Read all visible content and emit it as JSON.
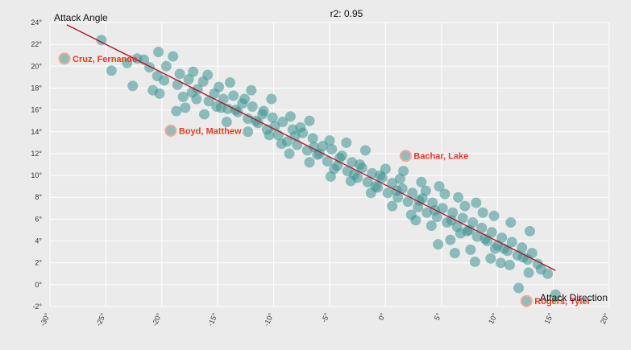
{
  "chart_data": {
    "type": "scatter",
    "title": "r2: 0.95",
    "xlabel": "Attack Direction",
    "ylabel": "Attack Angle",
    "xlim": [
      -30,
      20
    ],
    "ylim": [
      -2,
      24
    ],
    "x_ticks": [
      "-30°",
      "-25°",
      "-20°",
      "-15°",
      "-10°",
      "-5°",
      "0°",
      "5°",
      "10°",
      "15°",
      "20°"
    ],
    "y_ticks": [
      "-2°",
      "0°",
      "2°",
      "4°",
      "6°",
      "8°",
      "10°",
      "12°",
      "14°",
      "16°",
      "18°",
      "20°",
      "22°",
      "24°"
    ],
    "grid": true,
    "colors": {
      "points": "#3a9391",
      "trend": "#b2182b",
      "highlight_ring": "#f4a79a",
      "highlight_text": "#e8391d",
      "background": "#ebebeb"
    },
    "trendline": {
      "x": [
        -28.5,
        15.2
      ],
      "y": [
        23.8,
        1.3
      ]
    },
    "highlights": [
      {
        "name": "Cruz, Fernando",
        "x": -28.7,
        "y": 20.7
      },
      {
        "name": "Boyd, Matthew",
        "x": -19.2,
        "y": 14.1
      },
      {
        "name": "Bachar, Lake",
        "x": 1.8,
        "y": 11.8
      },
      {
        "name": "Rogers, Tyler",
        "x": 12.6,
        "y": -1.5
      }
    ],
    "points": [
      [
        -25.4,
        22.4
      ],
      [
        -24.5,
        19.6
      ],
      [
        -23.1,
        20.3
      ],
      [
        -22.2,
        20.7
      ],
      [
        -21.6,
        20.6
      ],
      [
        -21.1,
        19.9
      ],
      [
        -20.8,
        17.8
      ],
      [
        -20.3,
        21.3
      ],
      [
        -19.6,
        20.0
      ],
      [
        -19.0,
        20.9
      ],
      [
        -18.4,
        19.3
      ],
      [
        -18.1,
        17.2
      ],
      [
        -17.6,
        18.8
      ],
      [
        -17.2,
        19.5
      ],
      [
        -16.8,
        17.9
      ],
      [
        -16.3,
        18.6
      ],
      [
        -15.8,
        16.8
      ],
      [
        -15.3,
        17.5
      ],
      [
        -14.9,
        18.1
      ],
      [
        -14.5,
        17.0
      ],
      [
        -14.1,
        16.1
      ],
      [
        -13.6,
        17.3
      ],
      [
        -13.2,
        15.8
      ],
      [
        -12.8,
        16.6
      ],
      [
        -12.3,
        15.2
      ],
      [
        -11.9,
        16.3
      ],
      [
        -11.4,
        14.8
      ],
      [
        -11.0,
        15.6
      ],
      [
        -10.6,
        14.2
      ],
      [
        -10.1,
        15.3
      ],
      [
        -9.6,
        13.7
      ],
      [
        -9.2,
        14.9
      ],
      [
        -8.8,
        13.1
      ],
      [
        -8.3,
        14.2
      ],
      [
        -7.9,
        12.8
      ],
      [
        -7.4,
        13.9
      ],
      [
        -7.0,
        12.3
      ],
      [
        -6.5,
        13.4
      ],
      [
        -6.1,
        11.9
      ],
      [
        -5.6,
        12.7
      ],
      [
        -5.2,
        11.3
      ],
      [
        -4.8,
        12.4
      ],
      [
        -4.3,
        10.9
      ],
      [
        -3.9,
        11.8
      ],
      [
        -3.4,
        10.4
      ],
      [
        -3.0,
        11.2
      ],
      [
        -2.5,
        9.8
      ],
      [
        -2.1,
        10.7
      ],
      [
        -1.6,
        9.4
      ],
      [
        -1.2,
        10.2
      ],
      [
        -0.7,
        8.9
      ],
      [
        -0.3,
        9.8
      ],
      [
        0.2,
        8.4
      ],
      [
        0.6,
        9.3
      ],
      [
        1.1,
        8.0
      ],
      [
        1.5,
        8.8
      ],
      [
        2.0,
        7.6
      ],
      [
        2.4,
        8.4
      ],
      [
        2.9,
        7.1
      ],
      [
        3.3,
        7.9
      ],
      [
        3.7,
        6.6
      ],
      [
        4.2,
        7.5
      ],
      [
        4.6,
        6.2
      ],
      [
        5.1,
        7.0
      ],
      [
        5.5,
        5.7
      ],
      [
        6.0,
        6.6
      ],
      [
        6.4,
        5.3
      ],
      [
        6.9,
        6.1
      ],
      [
        7.3,
        4.9
      ],
      [
        7.8,
        5.7
      ],
      [
        8.2,
        4.4
      ],
      [
        8.6,
        5.2
      ],
      [
        9.1,
        4.0
      ],
      [
        9.5,
        4.8
      ],
      [
        10.0,
        3.6
      ],
      [
        10.4,
        4.3
      ],
      [
        10.9,
        3.1
      ],
      [
        11.3,
        3.9
      ],
      [
        11.8,
        2.7
      ],
      [
        12.2,
        3.4
      ],
      [
        12.7,
        2.3
      ],
      [
        13.1,
        2.9
      ],
      [
        13.6,
        1.9
      ],
      [
        14.5,
        1.0
      ],
      [
        15.2,
        -0.9
      ],
      [
        11.9,
        -0.3
      ],
      [
        -22.6,
        18.2
      ],
      [
        -20.2,
        17.5
      ],
      [
        -17.9,
        16.2
      ],
      [
        -15.9,
        19.2
      ],
      [
        -13.9,
        18.5
      ],
      [
        -12.0,
        17.8
      ],
      [
        -10.2,
        17.0
      ],
      [
        -8.5,
        15.4
      ],
      [
        -6.8,
        15.0
      ],
      [
        -5.0,
        13.2
      ],
      [
        -3.5,
        13.0
      ],
      [
        -1.8,
        12.3
      ],
      [
        0.0,
        10.6
      ],
      [
        1.6,
        10.4
      ],
      [
        3.2,
        9.4
      ],
      [
        4.8,
        9.0
      ],
      [
        6.5,
        8.0
      ],
      [
        8.1,
        7.5
      ],
      [
        9.7,
        6.3
      ],
      [
        11.2,
        5.7
      ],
      [
        12.9,
        4.9
      ],
      [
        -18.7,
        15.9
      ],
      [
        -16.2,
        15.6
      ],
      [
        -14.2,
        14.9
      ],
      [
        -12.3,
        14.0
      ],
      [
        -10.4,
        13.7
      ],
      [
        -8.6,
        12.0
      ],
      [
        -6.8,
        11.2
      ],
      [
        -4.9,
        9.9
      ],
      [
        -3.1,
        9.5
      ],
      [
        -1.3,
        8.4
      ],
      [
        0.6,
        7.2
      ],
      [
        2.3,
        6.4
      ],
      [
        4.1,
        5.4
      ],
      [
        5.8,
        4.1
      ],
      [
        7.6,
        3.2
      ],
      [
        9.4,
        2.4
      ],
      [
        11.1,
        1.8
      ],
      [
        12.8,
        1.1
      ],
      [
        4.7,
        3.7
      ],
      [
        6.2,
        2.9
      ],
      [
        8.0,
        2.1
      ],
      [
        10.3,
        2.0
      ],
      [
        7.1,
        7.2
      ],
      [
        8.7,
        6.6
      ],
      [
        5.3,
        8.3
      ],
      [
        3.6,
        8.6
      ],
      [
        6.7,
        4.7
      ],
      [
        9.8,
        3.3
      ],
      [
        2.7,
        5.9
      ],
      [
        1.0,
        8.6
      ],
      [
        -0.9,
        9.0
      ],
      [
        -2.8,
        10.1
      ],
      [
        -4.6,
        10.6
      ],
      [
        -6.4,
        12.6
      ],
      [
        -8.1,
        13.6
      ],
      [
        -9.9,
        14.5
      ],
      [
        -11.6,
        15.0
      ],
      [
        -13.4,
        16.0
      ],
      [
        -15.1,
        16.3
      ],
      [
        -16.9,
        17.0
      ],
      [
        -18.6,
        18.3
      ],
      [
        -20.4,
        19.1
      ],
      [
        -19.8,
        18.7
      ],
      [
        -17.3,
        17.6
      ],
      [
        -14.7,
        16.2
      ],
      [
        -12.6,
        17.0
      ],
      [
        -10.9,
        15.9
      ],
      [
        -9.3,
        12.9
      ],
      [
        -7.6,
        14.4
      ],
      [
        -5.9,
        12.0
      ],
      [
        -4.1,
        11.6
      ],
      [
        -2.3,
        11.0
      ],
      [
        -0.5,
        10.0
      ],
      [
        1.3,
        9.7
      ],
      [
        3.0,
        7.7
      ],
      [
        4.4,
        6.8
      ],
      [
        5.9,
        5.9
      ],
      [
        7.5,
        5.0
      ],
      [
        8.9,
        4.2
      ],
      [
        10.6,
        3.3
      ],
      [
        12.3,
        2.5
      ],
      [
        13.9,
        1.4
      ]
    ]
  }
}
